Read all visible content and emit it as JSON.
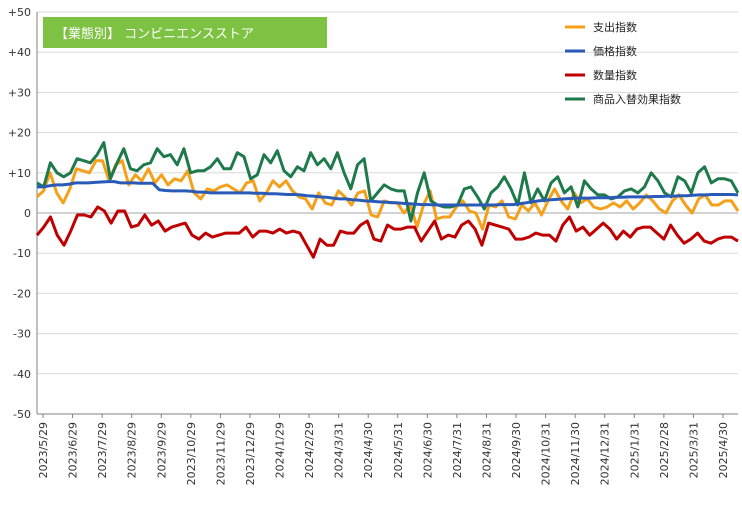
{
  "chart_data": {
    "type": "line",
    "title": "【業態別】 コンビニエンスストア",
    "title_bg": "#7dc242",
    "ylim": [
      -50,
      50
    ],
    "y_ticks": [
      "+50",
      "+40",
      "+30",
      "+20",
      "+10",
      "0",
      "-10",
      "-20",
      "-30",
      "-40",
      "-50"
    ],
    "x_tick_labels": [
      "2023/5/29",
      "2023/6/29",
      "2023/7/29",
      "2023/8/29",
      "2023/9/29",
      "2023/10/29",
      "2023/11/29",
      "2023/12/29",
      "2024/1/29",
      "2024/2/29",
      "2024/3/31",
      "2024/4/30",
      "2024/5/31",
      "2024/6/30",
      "2024/7/31",
      "2024/8/31",
      "2024/9/30",
      "2024/10/31",
      "2024/11/30",
      "2024/12/31",
      "2025/1/31",
      "2025/2/28",
      "2025/3/31",
      "2025/4/30"
    ],
    "grid": true,
    "legend_position": "top-right",
    "series": [
      {
        "name": "支出指数",
        "color": "#f5a01a",
        "values": [
          4,
          5.5,
          10,
          5,
          2.5,
          6,
          11,
          10.5,
          10,
          13,
          13,
          8,
          12,
          13,
          7,
          9.5,
          8,
          11,
          7.5,
          9.5,
          7,
          8.5,
          8,
          10.5,
          5,
          3.5,
          6,
          5.5,
          6.5,
          7,
          6,
          5,
          7.5,
          8,
          3,
          5,
          8,
          6.5,
          8,
          5.5,
          4,
          3.5,
          1,
          5,
          2.5,
          2,
          5.5,
          4,
          2,
          5,
          5.5,
          -0.5,
          -1,
          3,
          2.5,
          2.5,
          0,
          2,
          -3.5,
          2,
          5.5,
          -1.5,
          -1,
          -1,
          1.5,
          3,
          0.5,
          0,
          -4,
          2,
          1.5,
          3,
          -1,
          -1.5,
          2,
          0.5,
          2.5,
          -0.5,
          3,
          6,
          3,
          1,
          5,
          2.5,
          3.5,
          1.5,
          1,
          1.5,
          2.5,
          1.5,
          3,
          1,
          2.5,
          4.5,
          3,
          1,
          0,
          3,
          4.5,
          2,
          0,
          3.5,
          4.5,
          2,
          2,
          3,
          3,
          0.5
        ]
      },
      {
        "name": "価格指数",
        "color": "#2a5ab8",
        "values": [
          6.5,
          6.5,
          6.8,
          7,
          7,
          7.2,
          7.5,
          7.5,
          7.5,
          7.6,
          7.7,
          7.8,
          7.8,
          7.5,
          7.5,
          7.5,
          7.4,
          7.4,
          7.4,
          5.8,
          5.6,
          5.5,
          5.5,
          5.5,
          5.4,
          5.2,
          5.2,
          5,
          5,
          5,
          5,
          5,
          5,
          5,
          4.9,
          4.9,
          4.8,
          4.8,
          4.7,
          4.6,
          4.6,
          4.5,
          4.3,
          4.2,
          4,
          3.9,
          3.7,
          3.5,
          3.5,
          3.3,
          3.2,
          3,
          2.9,
          2.8,
          2.7,
          2.6,
          2.5,
          2.4,
          2.3,
          2.2,
          2.1,
          2.1,
          2,
          2,
          2,
          2,
          2,
          2,
          2,
          2,
          2,
          2,
          2.1,
          2.1,
          2.1,
          2.3,
          2.5,
          2.8,
          3,
          3.2,
          3.3,
          3.4,
          3.5,
          3.6,
          3.7,
          3.7,
          3.7,
          3.8,
          3.8,
          3.8,
          3.9,
          3.9,
          4,
          4,
          4,
          4,
          4.1,
          4.1,
          4.2,
          4.2,
          4.3,
          4.3,
          4.4,
          4.5,
          4.5,
          4.6,
          4.6,
          4.6,
          4.6,
          4.5
        ]
      },
      {
        "name": "数量指数",
        "color": "#c00000",
        "values": [
          -5.5,
          -3.5,
          -1,
          -5.5,
          -8,
          -4.5,
          -0.5,
          -0.5,
          -1,
          1.5,
          0.5,
          -2.5,
          0.5,
          0.5,
          -3.5,
          -3,
          -0.5,
          -3,
          -2,
          -4.5,
          -3.5,
          -3,
          -2.5,
          -5.5,
          -6.5,
          -5,
          -6,
          -5.5,
          -5,
          -5,
          -5,
          -3.5,
          -6,
          -4.5,
          -4.5,
          -5,
          -4,
          -5,
          -4.5,
          -5,
          -8,
          -11,
          -6.5,
          -8,
          -8,
          -4.5,
          -5,
          -5,
          -3,
          -2,
          -6.5,
          -7,
          -3,
          -4,
          -4,
          -3.5,
          -3.5,
          -7,
          -4.5,
          -2,
          -6.5,
          -5.5,
          -6,
          -3,
          -2,
          -4,
          -8,
          -2.5,
          -3,
          -3.5,
          -4,
          -6.5,
          -6.5,
          -6,
          -5,
          -5.5,
          -5.5,
          -7,
          -3,
          -1,
          -4.5,
          -3.5,
          -5.5,
          -4,
          -2.5,
          -4,
          -6.5,
          -4.5,
          -6,
          -4,
          -3.5,
          -3.5,
          -5,
          -6.5,
          -3,
          -5.5,
          -7.5,
          -6.5,
          -5,
          -7,
          -7.5,
          -6.5,
          -6,
          -6,
          -7
        ]
      },
      {
        "name": "商品入替効果指数",
        "color": "#1e7a4a",
        "values": [
          7.5,
          6.5,
          12.5,
          10,
          9,
          10,
          13.5,
          13,
          12.5,
          14.5,
          17.5,
          8.5,
          12.5,
          16,
          11,
          10.5,
          12,
          12.5,
          16,
          14,
          14.5,
          12,
          16,
          10,
          10.5,
          10.5,
          11.5,
          13.5,
          11,
          11,
          15,
          14,
          8.5,
          9.5,
          14.5,
          12.5,
          15.5,
          10.5,
          9,
          11.5,
          10.5,
          15,
          12,
          13.5,
          11,
          15,
          10,
          6,
          12,
          13.5,
          3,
          5,
          7,
          6,
          5.5,
          5.5,
          -2,
          5,
          10,
          3,
          2,
          1.5,
          1.5,
          2,
          6,
          6.5,
          4,
          1,
          5,
          6.5,
          9,
          6,
          2,
          10,
          2.5,
          6,
          3,
          7.5,
          9,
          5,
          6.5,
          1.5,
          8,
          6,
          4.5,
          4.5,
          3.5,
          4,
          5.5,
          6,
          5,
          6.5,
          10,
          8,
          5,
          4,
          9,
          8,
          5,
          10,
          11.5,
          7.5,
          8.5,
          8.5,
          8,
          5
        ]
      }
    ]
  }
}
